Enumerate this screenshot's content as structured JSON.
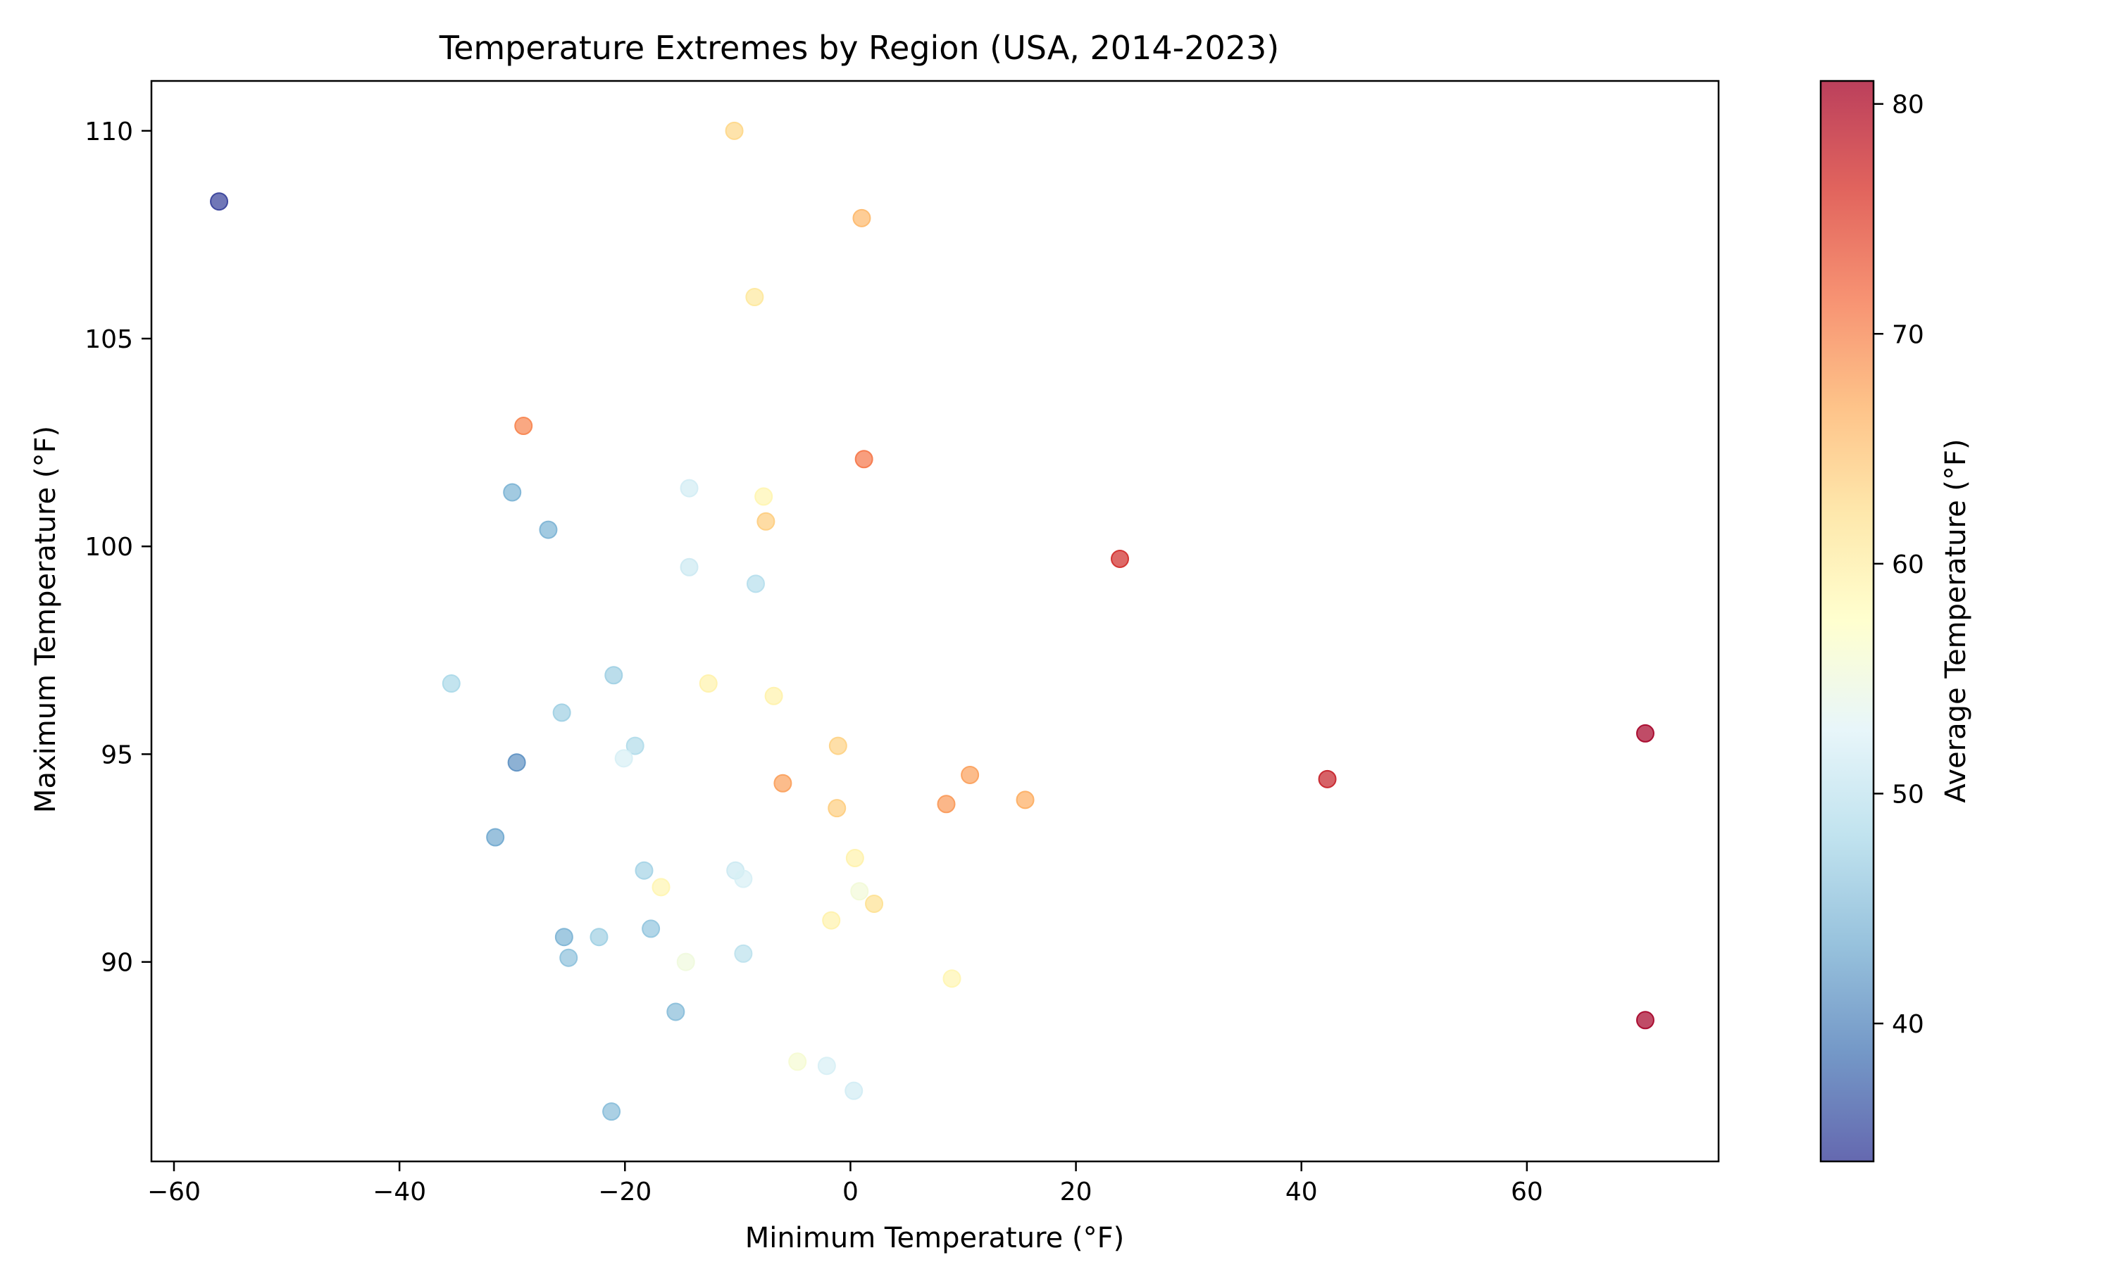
{
  "chart_data": {
    "type": "scatter",
    "title": "Temperature Extremes by Region (USA, 2014-2023)",
    "xlabel": "Minimum Temperature (°F)",
    "ylabel": "Maximum Temperature (°F)",
    "colorbar_label": "Average Temperature (°F)",
    "xlim": [
      -62,
      77
    ],
    "ylim": [
      85.2,
      111.2
    ],
    "xticks": [
      -60,
      -40,
      -20,
      0,
      20,
      40,
      60
    ],
    "xtick_labels": [
      "−60",
      "−40",
      "−20",
      "0",
      "20",
      "40",
      "60"
    ],
    "yticks": [
      90,
      95,
      100,
      105,
      110
    ],
    "ytick_labels": [
      "90",
      "95",
      "100",
      "105",
      "110"
    ],
    "color_range": [
      34,
      81
    ],
    "cticks": [
      40,
      50,
      60,
      70,
      80
    ],
    "ctick_labels": [
      "40",
      "50",
      "60",
      "70",
      "80"
    ],
    "colormap": "RdYlBu_r",
    "grid": false,
    "points": [
      {
        "x": -56.0,
        "y": 108.3,
        "c": 34.5
      },
      {
        "x": -10.3,
        "y": 110.0,
        "c": 63.0
      },
      {
        "x": 1.0,
        "y": 107.9,
        "c": 66.0
      },
      {
        "x": -8.5,
        "y": 106.0,
        "c": 61.0
      },
      {
        "x": -29.0,
        "y": 102.9,
        "c": 70.0
      },
      {
        "x": 1.2,
        "y": 102.1,
        "c": 71.0
      },
      {
        "x": -30.0,
        "y": 101.3,
        "c": 44.0
      },
      {
        "x": -14.3,
        "y": 101.4,
        "c": 51.5
      },
      {
        "x": -7.7,
        "y": 101.2,
        "c": 59.0
      },
      {
        "x": -7.5,
        "y": 100.6,
        "c": 64.0
      },
      {
        "x": -26.8,
        "y": 100.4,
        "c": 44.0
      },
      {
        "x": -14.3,
        "y": 99.5,
        "c": 51.0
      },
      {
        "x": -8.4,
        "y": 99.1,
        "c": 49.0
      },
      {
        "x": 23.9,
        "y": 99.7,
        "c": 77.0
      },
      {
        "x": -35.4,
        "y": 96.7,
        "c": 48.0
      },
      {
        "x": -21.0,
        "y": 96.9,
        "c": 47.0
      },
      {
        "x": -12.6,
        "y": 96.7,
        "c": 59.5
      },
      {
        "x": -6.8,
        "y": 96.4,
        "c": 59.5
      },
      {
        "x": -25.6,
        "y": 96.0,
        "c": 47.0
      },
      {
        "x": -19.1,
        "y": 95.2,
        "c": 48.5
      },
      {
        "x": -20.1,
        "y": 94.9,
        "c": 52.0
      },
      {
        "x": -29.6,
        "y": 94.8,
        "c": 41.0
      },
      {
        "x": -1.1,
        "y": 95.2,
        "c": 63.5
      },
      {
        "x": -6.0,
        "y": 94.3,
        "c": 68.0
      },
      {
        "x": -1.2,
        "y": 93.7,
        "c": 64.0
      },
      {
        "x": 10.6,
        "y": 94.5,
        "c": 68.0
      },
      {
        "x": 8.5,
        "y": 93.8,
        "c": 68.5
      },
      {
        "x": 15.5,
        "y": 93.9,
        "c": 67.0
      },
      {
        "x": 42.3,
        "y": 94.4,
        "c": 78.0
      },
      {
        "x": 70.5,
        "y": 95.5,
        "c": 81.0
      },
      {
        "x": -31.5,
        "y": 93.0,
        "c": 43.0
      },
      {
        "x": -18.3,
        "y": 92.2,
        "c": 47.5
      },
      {
        "x": -16.8,
        "y": 91.8,
        "c": 59.0
      },
      {
        "x": -10.2,
        "y": 92.2,
        "c": 51.0
      },
      {
        "x": -9.5,
        "y": 92.0,
        "c": 52.0
      },
      {
        "x": 0.4,
        "y": 92.5,
        "c": 59.5
      },
      {
        "x": 0.8,
        "y": 91.7,
        "c": 55.5
      },
      {
        "x": 2.1,
        "y": 91.4,
        "c": 62.0
      },
      {
        "x": -1.7,
        "y": 91.0,
        "c": 59.5
      },
      {
        "x": -25.4,
        "y": 90.6,
        "c": 44.0
      },
      {
        "x": -22.3,
        "y": 90.6,
        "c": 47.0
      },
      {
        "x": -17.7,
        "y": 90.8,
        "c": 46.0
      },
      {
        "x": -25.0,
        "y": 90.1,
        "c": 45.5
      },
      {
        "x": -14.6,
        "y": 90.0,
        "c": 55.0
      },
      {
        "x": -9.5,
        "y": 90.2,
        "c": 49.5
      },
      {
        "x": 9.0,
        "y": 89.6,
        "c": 59.0
      },
      {
        "x": 70.5,
        "y": 88.6,
        "c": 81.0
      },
      {
        "x": -15.5,
        "y": 88.8,
        "c": 45.0
      },
      {
        "x": -4.7,
        "y": 87.6,
        "c": 56.0
      },
      {
        "x": -2.1,
        "y": 87.5,
        "c": 52.0
      },
      {
        "x": 0.3,
        "y": 86.9,
        "c": 51.5
      },
      {
        "x": -21.2,
        "y": 86.4,
        "c": 45.0
      }
    ]
  }
}
